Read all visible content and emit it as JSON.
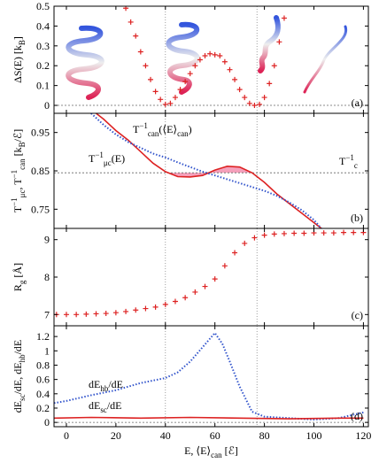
{
  "chart_data": [
    {
      "type": "scatter",
      "panel_label": "(a)",
      "ylabel": [
        {
          "text": "ΔS(E) [k",
          "pos": "base"
        },
        {
          "text": "B",
          "pos": "sub"
        },
        {
          "text": "]",
          "pos": "base"
        }
      ],
      "xlim": [
        -5,
        122
      ],
      "ylim": [
        -0.04,
        0.5
      ],
      "yticks": [
        0,
        0.1,
        0.2,
        0.3,
        0.4,
        0.5
      ],
      "hline": 0,
      "vlines": [
        40,
        77
      ],
      "series": [
        {
          "color": "#dd2222",
          "x": [
            24,
            26,
            28,
            30,
            32,
            34,
            36,
            38,
            40,
            42,
            44,
            46,
            48,
            50,
            52,
            54,
            56,
            58,
            60,
            62,
            64,
            66,
            68,
            70,
            72,
            74,
            76,
            78,
            80,
            82,
            84,
            86,
            88
          ],
          "values": [
            0.49,
            0.42,
            0.35,
            0.27,
            0.2,
            0.13,
            0.07,
            0.03,
            0.005,
            0.01,
            0.04,
            0.08,
            0.12,
            0.16,
            0.2,
            0.23,
            0.25,
            0.26,
            0.255,
            0.25,
            0.22,
            0.18,
            0.13,
            0.08,
            0.04,
            0.01,
            0.0,
            0.005,
            0.04,
            0.11,
            0.2,
            0.32,
            0.44
          ]
        }
      ]
    },
    {
      "type": "line",
      "panel_label": "(b)",
      "ylabel": [
        {
          "text": "T",
          "pos": "base"
        },
        {
          "text": "−1",
          "pos": "sup"
        },
        {
          "text": "μc",
          "pos": "sub"
        },
        {
          "text": ", T",
          "pos": "base"
        },
        {
          "text": "−1",
          "pos": "sup"
        },
        {
          "text": "can",
          "pos": "sub"
        },
        {
          "text": " [k",
          "pos": "base"
        },
        {
          "text": "B",
          "pos": "sub"
        },
        {
          "text": "/ℰ]",
          "pos": "base"
        }
      ],
      "xlim": [
        -5,
        122
      ],
      "ylim": [
        0.7,
        1.0
      ],
      "yticks": [
        0.75,
        0.85,
        0.95
      ],
      "hline": 0.845,
      "vlines": [
        40,
        77
      ],
      "shade": "#f5a0bb",
      "annotations": [
        [
          {
            "text": "T",
            "pos": "base"
          },
          {
            "text": "−1",
            "pos": "sup"
          },
          {
            "text": "can",
            "pos": "sub"
          },
          {
            "text": "(⟨E⟩",
            "pos": "base"
          },
          {
            "text": "can",
            "pos": "sub"
          },
          {
            "text": ")",
            "pos": "base"
          }
        ],
        [
          {
            "text": "T",
            "pos": "base"
          },
          {
            "text": "−1",
            "pos": "sup"
          },
          {
            "text": "μc",
            "pos": "sub"
          },
          {
            "text": "(E)",
            "pos": "base"
          }
        ],
        [
          {
            "text": "T",
            "pos": "base"
          },
          {
            "text": "−1",
            "pos": "sup"
          },
          {
            "text": "c",
            "pos": "sub"
          }
        ]
      ],
      "series": [
        {
          "color": "#dd2222",
          "style": "solid",
          "x": [
            12,
            15,
            20,
            25,
            30,
            35,
            40,
            45,
            50,
            55,
            60,
            65,
            70,
            75,
            80,
            85,
            90,
            95,
            100,
            103
          ],
          "values": [
            1.0,
            0.985,
            0.955,
            0.93,
            0.9,
            0.87,
            0.848,
            0.835,
            0.834,
            0.838,
            0.852,
            0.862,
            0.86,
            0.845,
            0.82,
            0.79,
            0.765,
            0.74,
            0.715,
            0.7
          ]
        },
        {
          "color": "#3355cc",
          "style": "dotted",
          "x": [
            10,
            15,
            20,
            25,
            30,
            35,
            40,
            45,
            50,
            55,
            60,
            65,
            70,
            75,
            80,
            85,
            90,
            95,
            100,
            103
          ],
          "values": [
            1.0,
            0.97,
            0.945,
            0.925,
            0.91,
            0.895,
            0.885,
            0.872,
            0.86,
            0.848,
            0.838,
            0.828,
            0.818,
            0.808,
            0.798,
            0.785,
            0.768,
            0.748,
            0.722,
            0.7
          ]
        }
      ]
    },
    {
      "type": "scatter",
      "panel_label": "(c)",
      "ylabel": [
        {
          "text": "R",
          "pos": "base"
        },
        {
          "text": "g",
          "pos": "sub"
        },
        {
          "text": " [Å]",
          "pos": "base"
        }
      ],
      "xlim": [
        -5,
        122
      ],
      "ylim": [
        6.7,
        9.3
      ],
      "yticks": [
        7,
        8,
        9
      ],
      "vlines": [
        40,
        77
      ],
      "series": [
        {
          "color": "#dd2222",
          "x": [
            -4,
            0,
            4,
            8,
            12,
            16,
            20,
            24,
            28,
            32,
            36,
            40,
            44,
            48,
            52,
            56,
            60,
            64,
            68,
            72,
            76,
            80,
            84,
            88,
            92,
            96,
            100,
            104,
            108,
            112,
            116,
            120
          ],
          "values": [
            7.0,
            7.0,
            7.0,
            7.01,
            7.02,
            7.03,
            7.05,
            7.08,
            7.12,
            7.16,
            7.2,
            7.27,
            7.35,
            7.45,
            7.6,
            7.75,
            7.95,
            8.3,
            8.65,
            8.9,
            9.05,
            9.12,
            9.15,
            9.16,
            9.17,
            9.17,
            9.18,
            9.18,
            9.18,
            9.19,
            9.19,
            9.19
          ]
        }
      ]
    },
    {
      "type": "line",
      "panel_label": "(d)",
      "ylabel": [
        {
          "text": "dE",
          "pos": "base"
        },
        {
          "text": "sc",
          "pos": "sub"
        },
        {
          "text": "/dE, dE",
          "pos": "base"
        },
        {
          "text": "hb",
          "pos": "sub"
        },
        {
          "text": "/dE",
          "pos": "base"
        }
      ],
      "xlabel": [
        {
          "text": "E, ⟨E⟩",
          "pos": "base"
        },
        {
          "text": "can",
          "pos": "sub"
        },
        {
          "text": " [ℰ]",
          "pos": "base"
        }
      ],
      "xlim": [
        -5,
        122
      ],
      "xticks": [
        0,
        20,
        40,
        60,
        80,
        100,
        120
      ],
      "ylim": [
        -0.06,
        1.35
      ],
      "yticks": [
        0,
        0.2,
        0.4,
        0.6,
        0.8,
        1,
        1.2
      ],
      "hline": 0,
      "vlines": [
        40,
        77
      ],
      "annotations": [
        [
          {
            "text": "dE",
            "pos": "base"
          },
          {
            "text": "hb",
            "pos": "sub"
          },
          {
            "text": "/dE",
            "pos": "base"
          }
        ],
        [
          {
            "text": "dE",
            "pos": "base"
          },
          {
            "text": "sc",
            "pos": "sub"
          },
          {
            "text": "/dE",
            "pos": "base"
          }
        ]
      ],
      "series": [
        {
          "color": "#3355cc",
          "style": "dotted",
          "x": [
            -5,
            0,
            10,
            20,
            30,
            40,
            45,
            50,
            55,
            60,
            63,
            66,
            70,
            75,
            80,
            90,
            100,
            110,
            115,
            120
          ],
          "values": [
            0.27,
            0.3,
            0.38,
            0.45,
            0.55,
            0.62,
            0.7,
            0.85,
            1.05,
            1.25,
            1.1,
            0.85,
            0.5,
            0.15,
            0.08,
            0.06,
            0.04,
            0.06,
            0.1,
            0.14
          ]
        },
        {
          "color": "#dd2222",
          "style": "solid",
          "x": [
            -5,
            10,
            30,
            50,
            70,
            90,
            110,
            120
          ],
          "values": [
            0.06,
            0.07,
            0.06,
            0.07,
            0.06,
            0.05,
            0.06,
            0.06
          ]
        }
      ]
    }
  ]
}
